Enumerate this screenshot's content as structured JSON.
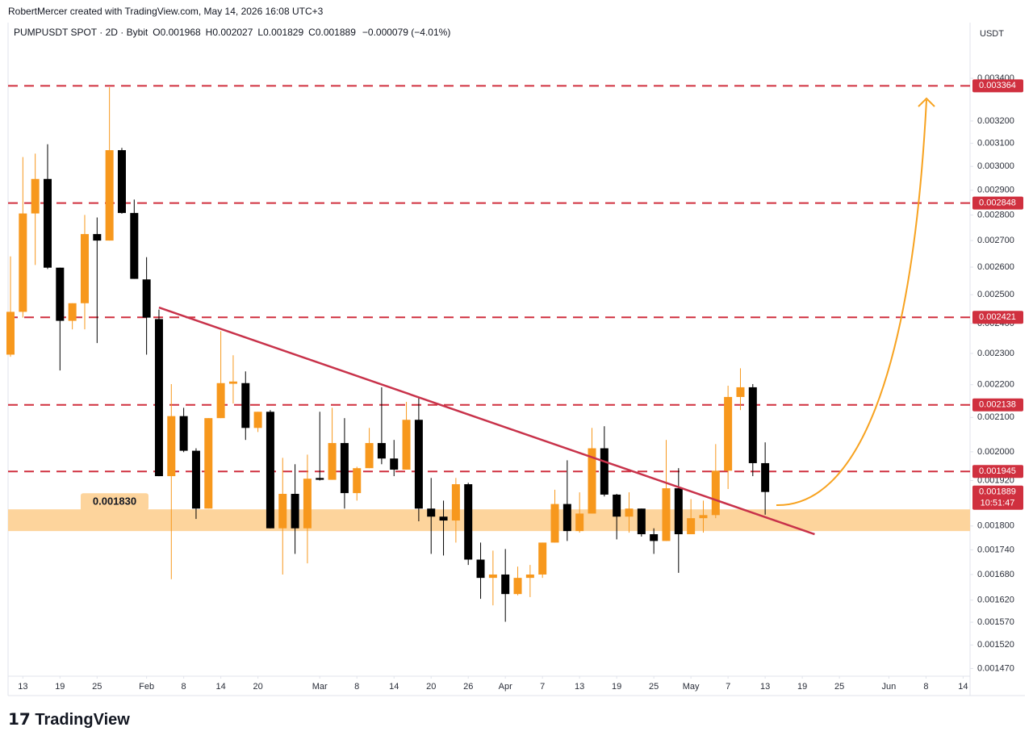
{
  "header": {
    "credit": "RobertMercer created with TradingView.com, May 14, 2026 16:08 UTC+3",
    "logo": "TradingView"
  },
  "chart_data": {
    "type": "candlestick",
    "legend": {
      "symbol": "PUMPUSDT SPOT · 2D · Bybit",
      "o": "O",
      "h": "H",
      "l": "L",
      "c": "C",
      "change": "−0.000079 (−4.01%)"
    },
    "currency": "USDT",
    "log_scale": true,
    "up_color": "#f7981d",
    "down_color": "#000000",
    "candles": [
      {
        "o": 0.002296,
        "h": 0.00264,
        "l": 0.002289,
        "c": 0.00244
      },
      {
        "o": 0.00244,
        "h": 0.00304,
        "l": 0.00242,
        "c": 0.002806
      },
      {
        "o": 0.002806,
        "h": 0.003055,
        "l": 0.002608,
        "c": 0.002947
      },
      {
        "o": 0.002947,
        "h": 0.003096,
        "l": 0.002593,
        "c": 0.002598
      },
      {
        "o": 0.002598,
        "h": 0.002598,
        "l": 0.002245,
        "c": 0.002409
      },
      {
        "o": 0.002409,
        "h": 0.00247,
        "l": 0.00238,
        "c": 0.00247
      },
      {
        "o": 0.00247,
        "h": 0.0028,
        "l": 0.00238,
        "c": 0.002725
      },
      {
        "o": 0.002725,
        "h": 0.00279,
        "l": 0.002334,
        "c": 0.0027
      },
      {
        "o": 0.0027,
        "h": 0.003357,
        "l": 0.0027,
        "c": 0.00307
      },
      {
        "o": 0.00307,
        "h": 0.00308,
        "l": 0.002805,
        "c": 0.002808
      },
      {
        "o": 0.002808,
        "h": 0.002862,
        "l": 0.002557,
        "c": 0.002557
      },
      {
        "o": 0.002555,
        "h": 0.002637,
        "l": 0.002296,
        "c": 0.00242
      },
      {
        "o": 0.002415,
        "h": 0.002448,
        "l": 0.001932,
        "c": 0.001932
      },
      {
        "o": 0.001932,
        "h": 0.002202,
        "l": 0.001669,
        "c": 0.002104
      },
      {
        "o": 0.002104,
        "h": 0.002129,
        "l": 0.001999,
        "c": 0.002003
      },
      {
        "o": 0.002003,
        "h": 0.00201,
        "l": 0.001818,
        "c": 0.001845
      },
      {
        "o": 0.001845,
        "h": 0.002098,
        "l": 0.001845,
        "c": 0.002098
      },
      {
        "o": 0.002098,
        "h": 0.002374,
        "l": 0.002098,
        "c": 0.002205
      },
      {
        "o": 0.002203,
        "h": 0.002294,
        "l": 0.002142,
        "c": 0.00221
      },
      {
        "o": 0.002205,
        "h": 0.002242,
        "l": 0.002034,
        "c": 0.002069
      },
      {
        "o": 0.002069,
        "h": 0.002117,
        "l": 0.002057,
        "c": 0.002117
      },
      {
        "o": 0.002117,
        "h": 0.002122,
        "l": 0.001794,
        "c": 0.001794
      },
      {
        "o": 0.001794,
        "h": 0.001983,
        "l": 0.00168,
        "c": 0.001884
      },
      {
        "o": 0.001884,
        "h": 0.001965,
        "l": 0.00173,
        "c": 0.001794
      },
      {
        "o": 0.001794,
        "h": 0.001992,
        "l": 0.001707,
        "c": 0.001925
      },
      {
        "o": 0.001927,
        "h": 0.002117,
        "l": 0.00192,
        "c": 0.001922
      },
      {
        "o": 0.001922,
        "h": 0.002129,
        "l": 0.001922,
        "c": 0.002025
      },
      {
        "o": 0.002025,
        "h": 0.002098,
        "l": 0.001845,
        "c": 0.001886
      },
      {
        "o": 0.001886,
        "h": 0.001958,
        "l": 0.001866,
        "c": 0.001954
      },
      {
        "o": 0.001954,
        "h": 0.002069,
        "l": 0.001954,
        "c": 0.002025
      },
      {
        "o": 0.002025,
        "h": 0.002192,
        "l": 0.001965,
        "c": 0.001981
      },
      {
        "o": 0.001981,
        "h": 0.002034,
        "l": 0.001932,
        "c": 0.00195
      },
      {
        "o": 0.00195,
        "h": 0.002147,
        "l": 0.00195,
        "c": 0.002093
      },
      {
        "o": 0.002093,
        "h": 0.002162,
        "l": 0.001812,
        "c": 0.001845
      },
      {
        "o": 0.001845,
        "h": 0.001927,
        "l": 0.00173,
        "c": 0.001824
      },
      {
        "o": 0.001824,
        "h": 0.001866,
        "l": 0.001726,
        "c": 0.001814
      },
      {
        "o": 0.001814,
        "h": 0.001927,
        "l": 0.001758,
        "c": 0.00191
      },
      {
        "o": 0.00191,
        "h": 0.001914,
        "l": 0.001703,
        "c": 0.001716
      },
      {
        "o": 0.001716,
        "h": 0.001758,
        "l": 0.001623,
        "c": 0.001672
      },
      {
        "o": 0.001672,
        "h": 0.001738,
        "l": 0.001608,
        "c": 0.00168
      },
      {
        "o": 0.00168,
        "h": 0.001742,
        "l": 0.001571,
        "c": 0.001634
      },
      {
        "o": 0.001634,
        "h": 0.001699,
        "l": 0.001631,
        "c": 0.001672
      },
      {
        "o": 0.001672,
        "h": 0.001703,
        "l": 0.001627,
        "c": 0.00168
      },
      {
        "o": 0.00168,
        "h": 0.001758,
        "l": 0.001672,
        "c": 0.001758
      },
      {
        "o": 0.001758,
        "h": 0.001895,
        "l": 0.001758,
        "c": 0.001857
      },
      {
        "o": 0.001857,
        "h": 0.001976,
        "l": 0.001762,
        "c": 0.001787
      },
      {
        "o": 0.001787,
        "h": 0.001888,
        "l": 0.001783,
        "c": 0.001832
      },
      {
        "o": 0.001832,
        "h": 0.002069,
        "l": 0.001832,
        "c": 0.00201
      },
      {
        "o": 0.00201,
        "h": 0.002074,
        "l": 0.001877,
        "c": 0.001882
      },
      {
        "o": 0.001882,
        "h": 0.001884,
        "l": 0.001766,
        "c": 0.001824
      },
      {
        "o": 0.001824,
        "h": 0.001888,
        "l": 0.001783,
        "c": 0.001845
      },
      {
        "o": 0.001845,
        "h": 0.001845,
        "l": 0.001773,
        "c": 0.001779
      },
      {
        "o": 0.001779,
        "h": 0.001794,
        "l": 0.00173,
        "c": 0.001762
      },
      {
        "o": 0.001762,
        "h": 0.002034,
        "l": 0.001762,
        "c": 0.001899
      },
      {
        "o": 0.001899,
        "h": 0.001954,
        "l": 0.001684,
        "c": 0.001779
      },
      {
        "o": 0.001779,
        "h": 0.00187,
        "l": 0.001779,
        "c": 0.00182
      },
      {
        "o": 0.00182,
        "h": 0.001866,
        "l": 0.001783,
        "c": 0.001828
      },
      {
        "o": 0.001828,
        "h": 0.002022,
        "l": 0.00182,
        "c": 0.001947
      },
      {
        "o": 0.001947,
        "h": 0.002197,
        "l": 0.001897,
        "c": 0.002162
      },
      {
        "o": 0.002162,
        "h": 0.002252,
        "l": 0.002122,
        "c": 0.002192
      },
      {
        "o": 0.002192,
        "h": 0.002202,
        "l": 0.001932,
        "c": 0.001968
      },
      {
        "o": 0.001968,
        "h": 0.002027,
        "l": 0.001829,
        "c": 0.001889
      }
    ],
    "countdown": "10:51:47",
    "ylim": [
      0.001454,
      0.00368
    ],
    "yticks": [
      {
        "value": 0.0034,
        "label": "0.003400"
      },
      {
        "value": 0.0032,
        "label": "0.003200"
      },
      {
        "value": 0.0031,
        "label": "0.003100"
      },
      {
        "value": 0.003,
        "label": "0.003000"
      },
      {
        "value": 0.0029,
        "label": "0.002900"
      },
      {
        "value": 0.0028,
        "label": "0.002800"
      },
      {
        "value": 0.0027,
        "label": "0.002700"
      },
      {
        "value": 0.0026,
        "label": "0.002600"
      },
      {
        "value": 0.0025,
        "label": "0.002500"
      },
      {
        "value": 0.0024,
        "label": "0.002400"
      },
      {
        "value": 0.0023,
        "label": "0.002300"
      },
      {
        "value": 0.0022,
        "label": "0.002200"
      },
      {
        "value": 0.0021,
        "label": "0.002100"
      },
      {
        "value": 0.002,
        "label": "0.002000"
      },
      {
        "value": 0.00192,
        "label": "0.001920"
      },
      {
        "value": 0.0018,
        "label": "0.001800"
      },
      {
        "value": 0.00174,
        "label": "0.001740"
      },
      {
        "value": 0.00168,
        "label": "0.001680"
      },
      {
        "value": 0.00162,
        "label": "0.001620"
      },
      {
        "value": 0.00157,
        "label": "0.001570"
      },
      {
        "value": 0.00152,
        "label": "0.001520"
      },
      {
        "value": 0.00147,
        "label": "0.001470"
      }
    ],
    "xticks": [
      {
        "value": 1,
        "label": "13"
      },
      {
        "value": 4,
        "label": "19"
      },
      {
        "value": 7,
        "label": "25"
      },
      {
        "value": 11,
        "label": "Feb"
      },
      {
        "value": 14,
        "label": "8"
      },
      {
        "value": 17,
        "label": "14"
      },
      {
        "value": 20,
        "label": "20"
      },
      {
        "value": 25,
        "label": "Mar"
      },
      {
        "value": 28,
        "label": "8"
      },
      {
        "value": 31,
        "label": "14"
      },
      {
        "value": 34,
        "label": "20"
      },
      {
        "value": 37,
        "label": "26"
      },
      {
        "value": 40,
        "label": "Apr"
      },
      {
        "value": 43,
        "label": "7"
      },
      {
        "value": 46,
        "label": "13"
      },
      {
        "value": 49,
        "label": "19"
      },
      {
        "value": 52,
        "label": "25"
      },
      {
        "value": 55,
        "label": "May"
      },
      {
        "value": 58,
        "label": "7"
      },
      {
        "value": 61,
        "label": "13"
      },
      {
        "value": 64,
        "label": "19"
      },
      {
        "value": 67,
        "label": "25"
      },
      {
        "value": 71,
        "label": "Jun"
      },
      {
        "value": 74,
        "label": "8"
      },
      {
        "value": 77,
        "label": "14"
      }
    ],
    "levels": [
      0.003364,
      0.002848,
      0.002421,
      0.002138,
      0.001945
    ],
    "level_color": "#d0303f",
    "zone": {
      "value": 0.00183,
      "label": "0.001830",
      "low": 0.001787,
      "high": 0.001843,
      "color": "#fdd49c"
    },
    "trendline": {
      "start": [
        12,
        0.002455
      ],
      "end": [
        65,
        0.001779
      ],
      "color": "#c8324a"
    }
  }
}
